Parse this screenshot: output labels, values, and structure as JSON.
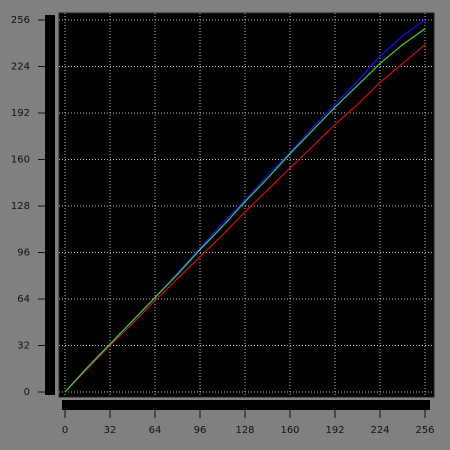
{
  "chart_data": {
    "type": "line",
    "x": [
      0,
      16,
      32,
      48,
      64,
      80,
      96,
      112,
      128,
      144,
      160,
      176,
      192,
      208,
      224,
      240,
      256
    ],
    "series": [
      {
        "name": "Red",
        "color": "#d01010",
        "values": [
          0,
          16,
          32,
          47,
          63,
          78,
          93,
          108,
          124,
          139,
          154,
          169,
          184,
          198,
          213,
          226,
          239
        ]
      },
      {
        "name": "Blue",
        "color": "#1010ff",
        "values": [
          0,
          17,
          33,
          49,
          65,
          82,
          99,
          116,
          132,
          149,
          165,
          182,
          198,
          214,
          231,
          245,
          256
        ]
      },
      {
        "name": "Green",
        "color": "#40d040",
        "values": [
          0,
          17,
          33,
          49,
          65,
          81,
          98,
          114,
          131,
          147,
          164,
          180,
          196,
          211,
          226,
          239,
          250
        ]
      }
    ],
    "xlim": [
      0,
      256
    ],
    "ylim": [
      0,
      256
    ],
    "xticks": [
      0,
      32,
      64,
      96,
      128,
      160,
      192,
      224,
      256
    ],
    "yticks": [
      0,
      32,
      64,
      96,
      128,
      160,
      192,
      224,
      256
    ],
    "grid": true
  }
}
